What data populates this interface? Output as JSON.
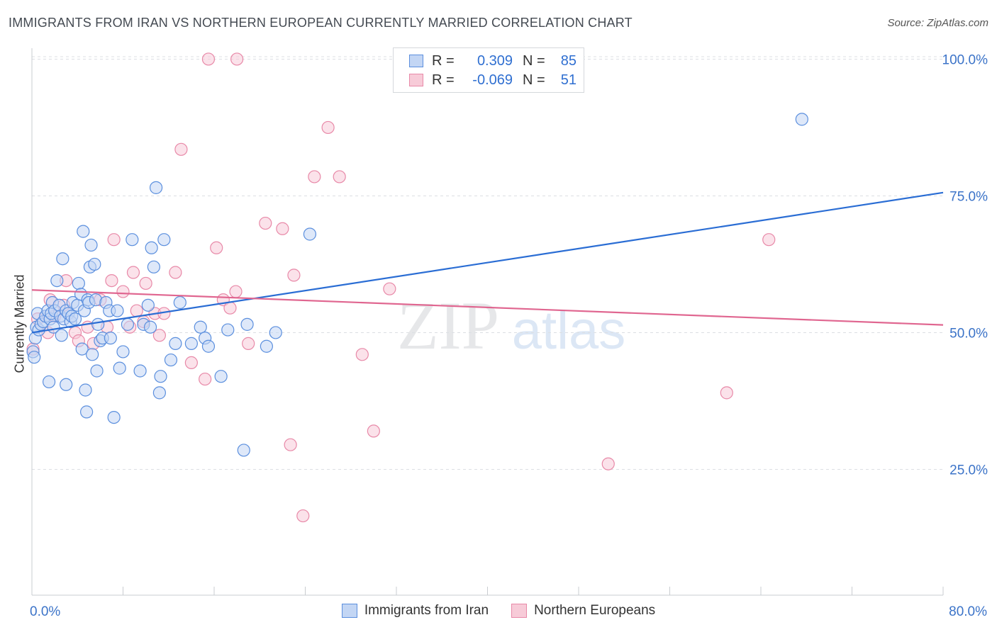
{
  "title": "IMMIGRANTS FROM IRAN VS NORTHERN EUROPEAN CURRENTLY MARRIED CORRELATION CHART",
  "source": "Source: ZipAtlas.com",
  "watermark": {
    "zip": "ZIP",
    "atlas": "atlas"
  },
  "legend": {
    "rows": [
      {
        "r_label": "R =",
        "r_value": "0.309",
        "n_label": "N =",
        "n_value": "85"
      },
      {
        "r_label": "R =",
        "r_value": "-0.069",
        "n_label": "N =",
        "n_value": "51"
      }
    ]
  },
  "bottom_legend": [
    "Immigrants from Iran",
    "Northern Europeans"
  ],
  "chart_data": {
    "type": "scatter",
    "title": "IMMIGRANTS FROM IRAN VS NORTHERN EUROPEAN CURRENTLY MARRIED CORRELATION CHART",
    "xlabel": "",
    "ylabel": "Currently Married",
    "xlim": [
      0,
      80
    ],
    "ylim": [
      2,
      102
    ],
    "x_tick_labels": [
      "0.0%",
      "80.0%"
    ],
    "y_ticks": [
      25,
      50,
      75,
      100
    ],
    "y_tick_labels": [
      "25.0%",
      "50.0%",
      "75.0%",
      "100.0%"
    ],
    "grid": "horizontal dashed",
    "legend_position": "top-center",
    "colors": {
      "series1": "#5b8fde",
      "series1_fill": "#c3d6f4",
      "series2": "#e889a8",
      "series2_fill": "#f7cbd8",
      "trend1": "#2a6dd4",
      "trend2": "#e06690"
    },
    "series": [
      {
        "name": "Immigrants from Iran",
        "trend": [
          [
            0,
            50.0
          ],
          [
            80,
            75.6
          ]
        ],
        "points": [
          [
            0.1,
            46.5
          ],
          [
            0.2,
            45.5
          ],
          [
            0.3,
            49.0
          ],
          [
            0.4,
            51.0
          ],
          [
            0.5,
            53.5
          ],
          [
            0.6,
            50.5
          ],
          [
            0.8,
            51.5
          ],
          [
            1.0,
            52.0
          ],
          [
            1.2,
            53.0
          ],
          [
            1.4,
            54.0
          ],
          [
            1.5,
            41.0
          ],
          [
            1.6,
            52.5
          ],
          [
            1.7,
            53.5
          ],
          [
            1.8,
            55.5
          ],
          [
            1.9,
            51.0
          ],
          [
            2.0,
            54.0
          ],
          [
            2.2,
            59.5
          ],
          [
            2.4,
            55.0
          ],
          [
            2.5,
            53.0
          ],
          [
            2.6,
            49.5
          ],
          [
            2.7,
            63.5
          ],
          [
            2.8,
            52.5
          ],
          [
            3.0,
            54.0
          ],
          [
            3.0,
            40.5
          ],
          [
            3.2,
            53.5
          ],
          [
            3.4,
            52.0
          ],
          [
            3.5,
            53.0
          ],
          [
            3.6,
            55.5
          ],
          [
            3.8,
            52.5
          ],
          [
            4.0,
            55.0
          ],
          [
            4.1,
            59.0
          ],
          [
            4.3,
            57.0
          ],
          [
            4.4,
            47.0
          ],
          [
            4.5,
            68.5
          ],
          [
            4.6,
            54.0
          ],
          [
            4.7,
            39.5
          ],
          [
            4.8,
            35.5
          ],
          [
            4.9,
            56.0
          ],
          [
            5.0,
            55.5
          ],
          [
            5.1,
            62.0
          ],
          [
            5.2,
            66.0
          ],
          [
            5.3,
            46.0
          ],
          [
            5.5,
            62.5
          ],
          [
            5.6,
            56.0
          ],
          [
            5.7,
            43.0
          ],
          [
            5.8,
            51.5
          ],
          [
            6.0,
            48.5
          ],
          [
            6.2,
            49.0
          ],
          [
            6.5,
            55.5
          ],
          [
            6.8,
            54.0
          ],
          [
            6.9,
            49.0
          ],
          [
            7.2,
            34.5
          ],
          [
            7.5,
            54.0
          ],
          [
            7.7,
            43.5
          ],
          [
            8.0,
            46.5
          ],
          [
            8.4,
            51.5
          ],
          [
            8.8,
            67.0
          ],
          [
            9.5,
            43.0
          ],
          [
            9.8,
            51.5
          ],
          [
            10.2,
            55.0
          ],
          [
            10.4,
            51.0
          ],
          [
            10.5,
            65.5
          ],
          [
            10.7,
            62.0
          ],
          [
            10.9,
            76.5
          ],
          [
            11.2,
            39.0
          ],
          [
            11.3,
            42.0
          ],
          [
            11.6,
            67.0
          ],
          [
            12.2,
            45.0
          ],
          [
            12.6,
            48.0
          ],
          [
            13.0,
            55.5
          ],
          [
            14.0,
            48.0
          ],
          [
            14.8,
            51.0
          ],
          [
            15.2,
            49.0
          ],
          [
            15.5,
            47.5
          ],
          [
            16.6,
            42.0
          ],
          [
            17.2,
            50.5
          ],
          [
            18.6,
            28.5
          ],
          [
            18.9,
            51.5
          ],
          [
            20.6,
            47.5
          ],
          [
            21.4,
            50.0
          ],
          [
            24.4,
            68.0
          ],
          [
            67.6,
            89.0
          ]
        ]
      },
      {
        "name": "Northern Europeans",
        "trend": [
          [
            0,
            57.8
          ],
          [
            80,
            51.4
          ]
        ],
        "points": [
          [
            0.1,
            47.0
          ],
          [
            0.5,
            52.5
          ],
          [
            1.4,
            50.0
          ],
          [
            1.6,
            56.0
          ],
          [
            2.0,
            53.0
          ],
          [
            2.8,
            55.0
          ],
          [
            3.0,
            59.5
          ],
          [
            3.8,
            50.0
          ],
          [
            4.1,
            48.5
          ],
          [
            4.9,
            51.0
          ],
          [
            5.4,
            48.0
          ],
          [
            6.0,
            56.0
          ],
          [
            6.6,
            51.0
          ],
          [
            7.0,
            59.5
          ],
          [
            7.2,
            67.0
          ],
          [
            8.0,
            57.5
          ],
          [
            8.6,
            51.0
          ],
          [
            8.9,
            61.0
          ],
          [
            9.2,
            54.0
          ],
          [
            9.8,
            52.0
          ],
          [
            10.0,
            59.0
          ],
          [
            10.8,
            53.5
          ],
          [
            11.2,
            49.5
          ],
          [
            11.6,
            53.5
          ],
          [
            12.6,
            61.0
          ],
          [
            13.1,
            83.5
          ],
          [
            14.0,
            44.5
          ],
          [
            15.2,
            41.5
          ],
          [
            15.5,
            100.0
          ],
          [
            16.2,
            65.5
          ],
          [
            16.8,
            56.0
          ],
          [
            17.4,
            54.5
          ],
          [
            17.9,
            57.5
          ],
          [
            18.0,
            100.0
          ],
          [
            19.0,
            48.0
          ],
          [
            20.5,
            70.0
          ],
          [
            22.0,
            69.0
          ],
          [
            22.7,
            29.5
          ],
          [
            23.0,
            60.5
          ],
          [
            23.8,
            16.5
          ],
          [
            24.8,
            78.5
          ],
          [
            26.0,
            87.5
          ],
          [
            27.0,
            78.5
          ],
          [
            29.0,
            46.0
          ],
          [
            30.0,
            32.0
          ],
          [
            31.4,
            58.0
          ],
          [
            50.6,
            26.0
          ],
          [
            61.0,
            39.0
          ],
          [
            64.7,
            67.0
          ]
        ]
      }
    ]
  }
}
